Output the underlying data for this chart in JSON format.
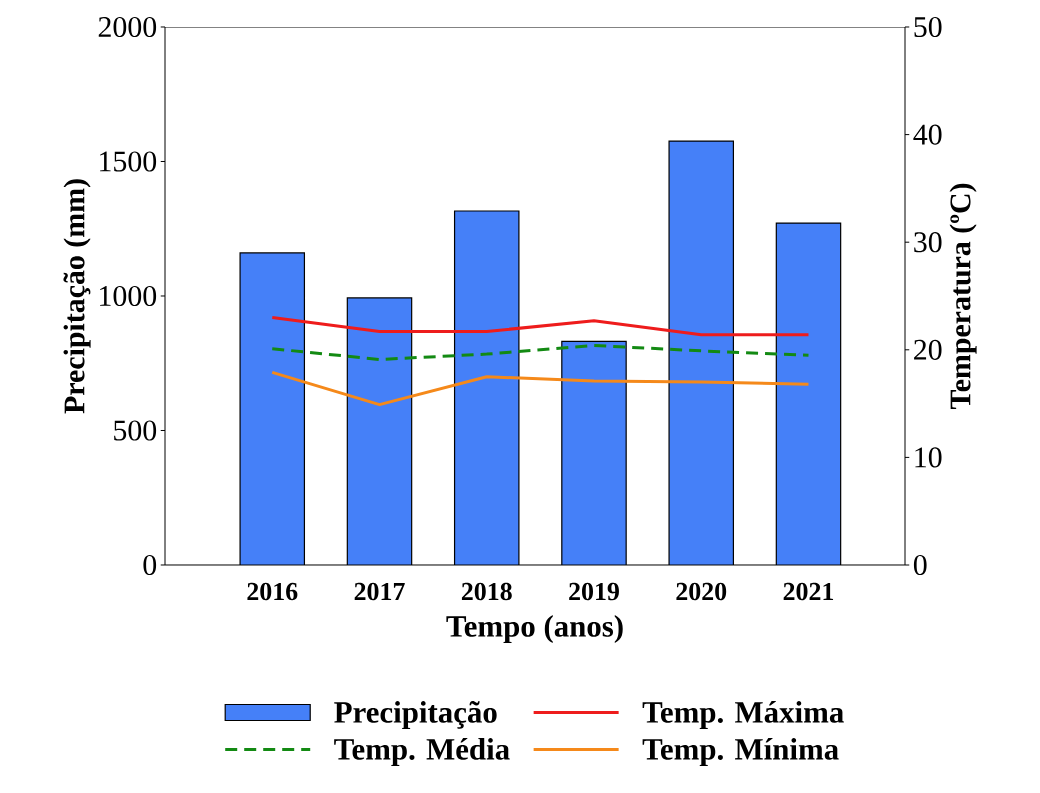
{
  "chart_data": {
    "type": "bar",
    "xlabel": "Tempo (anos)",
    "ylabel": "Precipitação (mm)",
    "y2label": "Temperatura (ºC)",
    "categories": [
      "2016",
      "2017",
      "2018",
      "2019",
      "2020",
      "2021"
    ],
    "ylim": [
      0,
      2000
    ],
    "yticks": [
      0,
      500,
      1000,
      1500,
      2000
    ],
    "y2lim": [
      0,
      50
    ],
    "y2ticks": [
      0,
      10,
      20,
      30,
      40,
      50
    ],
    "legend": "bottom",
    "marker": "none",
    "series": [
      {
        "name": "Precipitação",
        "color": "#4580f8",
        "values": [
          1160,
          993,
          1316,
          831,
          1576,
          1271
        ]
      },
      {
        "name": "Temp. Máxima",
        "type": "line",
        "axis": "y2",
        "line_style": "solid",
        "color": "#ee1c1c",
        "values": [
          23.0,
          21.7,
          21.7,
          22.7,
          21.4,
          21.4
        ]
      },
      {
        "name": "Temp. Média",
        "type": "line",
        "axis": "y2",
        "line_style": "dashed",
        "color": "#138a13",
        "values": [
          20.1,
          19.1,
          19.6,
          20.4,
          19.9,
          19.5
        ]
      },
      {
        "name": "Temp. Mínima",
        "type": "line",
        "axis": "y2",
        "line_style": "solid",
        "color": "#f5891a",
        "values": [
          17.9,
          14.9,
          17.5,
          17.1,
          17.0,
          16.8
        ]
      }
    ]
  }
}
